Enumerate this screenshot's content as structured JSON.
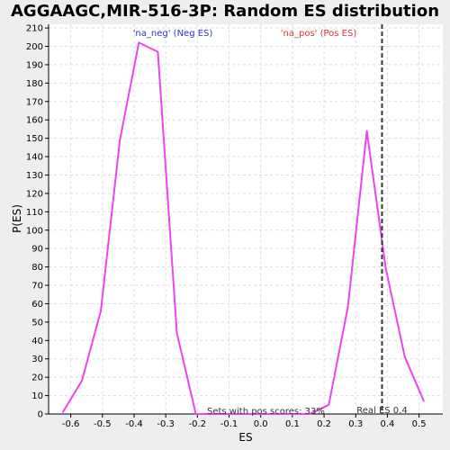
{
  "chart_data": {
    "type": "line",
    "title": "AGGAAGC,MIR-516-3P: Random ES distribution",
    "xlabel": "ES",
    "ylabel": "P(ES)",
    "xlim": [
      -0.67,
      0.575
    ],
    "ylim": [
      0,
      212
    ],
    "x_ticks": [
      -0.6,
      -0.5,
      -0.4,
      -0.3,
      -0.2,
      -0.1,
      0.0,
      0.1,
      0.2,
      0.3,
      0.4,
      0.5
    ],
    "x_tick_labels": [
      "-0.6",
      "-0.5",
      "-0.4",
      "-0.3",
      "-0.2",
      "-0.1",
      "0.0",
      "0.1",
      "0.2",
      "0.3",
      "0.4",
      "0.5"
    ],
    "y_ticks": [
      0,
      10,
      20,
      30,
      40,
      50,
      60,
      70,
      80,
      90,
      100,
      110,
      120,
      130,
      140,
      150,
      160,
      170,
      180,
      190,
      200,
      210
    ],
    "y_tick_labels": [
      "0",
      "10",
      "20",
      "30",
      "40",
      "50",
      "60",
      "70",
      "80",
      "90",
      "100",
      "110",
      "120",
      "130",
      "140",
      "150",
      "160",
      "170",
      "180",
      "190",
      "200",
      "210"
    ],
    "grid": true,
    "series": [
      {
        "color": "#ee44ee",
        "x": [
          -0.625,
          -0.565,
          -0.505,
          -0.445,
          -0.385,
          -0.325,
          -0.265,
          -0.205,
          -0.145,
          -0.085,
          -0.025,
          0.035,
          0.095,
          0.155,
          0.215,
          0.275,
          0.335,
          0.395,
          0.455,
          0.515
        ],
        "y": [
          1,
          18,
          56,
          149,
          202,
          197,
          44,
          0,
          0,
          0,
          0,
          0,
          0,
          0,
          5,
          58,
          154,
          79,
          31,
          7
        ]
      }
    ],
    "reference_line": {
      "x": 0.383,
      "label": "Real ES 0.4",
      "color": "#333333"
    },
    "legend": [
      {
        "text": "'na_neg' (Neg ES)",
        "color": "#3333cc",
        "placement": "top-left"
      },
      {
        "text": "'na_pos' (Pos ES)",
        "color": "#dd3333",
        "placement": "top-right"
      }
    ],
    "annotation": "Sets with pos scores: 33%"
  }
}
